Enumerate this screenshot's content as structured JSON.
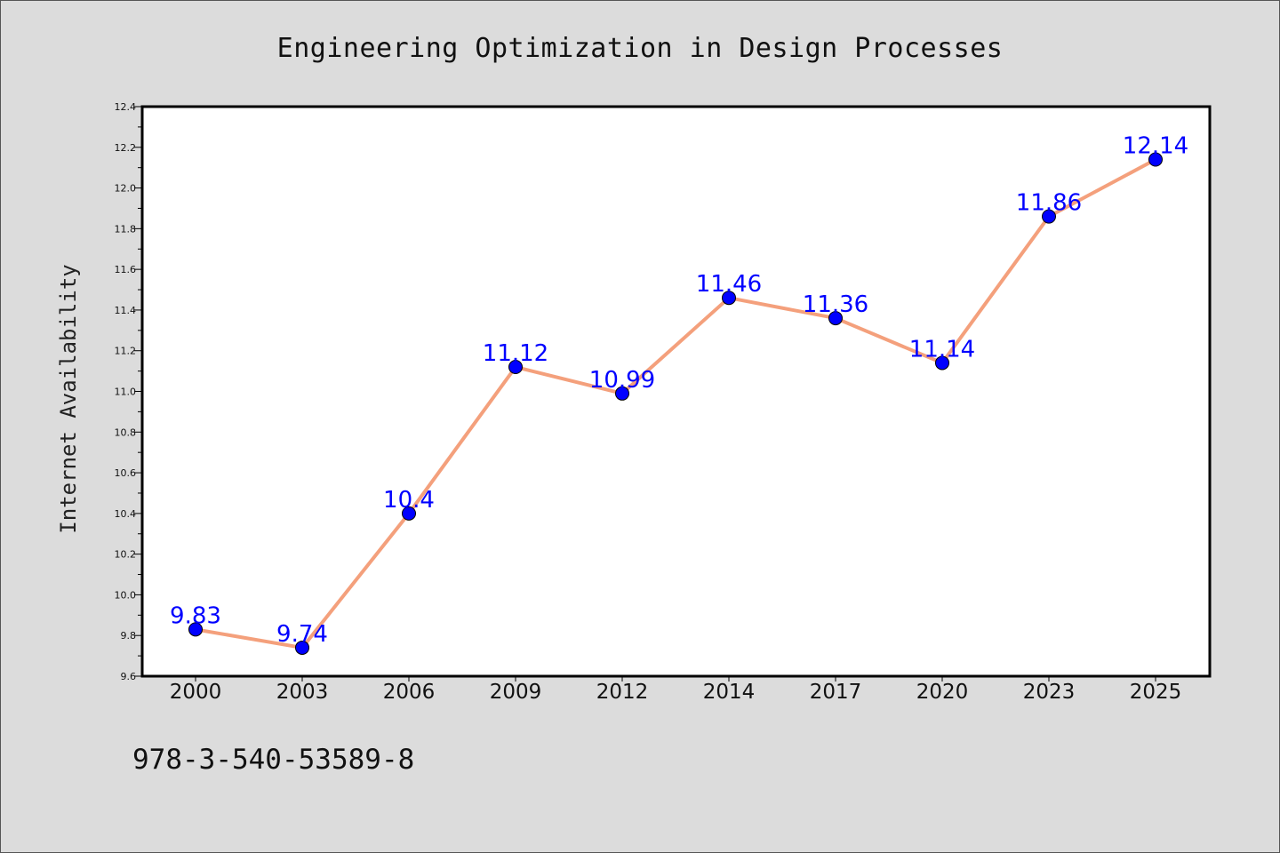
{
  "chart_data": {
    "type": "line",
    "title": "Engineering Optimization in Design Processes",
    "xlabel": "",
    "ylabel": "Internet Availability",
    "categories": [
      "2000",
      "2003",
      "2006",
      "2009",
      "2012",
      "2014",
      "2017",
      "2020",
      "2023",
      "2025"
    ],
    "series": [
      {
        "values": [
          9.83,
          9.74,
          10.4,
          11.12,
          10.99,
          11.46,
          11.36,
          11.14,
          11.86,
          12.14
        ],
        "data_labels": [
          "9.83",
          "9.74",
          "10.4",
          "11.12",
          "10.99",
          "11.46",
          "11.36",
          "11.14",
          "11.86",
          "12.14"
        ]
      }
    ],
    "ylim": [
      9.6,
      12.4
    ],
    "yticks": [
      "9.6",
      "9.8",
      "10.0",
      "10.2",
      "10.4",
      "10.6",
      "10.8",
      "11.0",
      "11.2",
      "11.4",
      "11.6",
      "11.8",
      "12.0",
      "12.2",
      "12.4"
    ],
    "grid": false,
    "colors": {
      "line": "#f4a07c",
      "marker": "#0000ff",
      "data_label": "#0000ff",
      "figure_bg": "#dcdcdc",
      "plot_bg": "#ffffff"
    }
  },
  "footer": {
    "code": "978-3-540-53589-8"
  }
}
